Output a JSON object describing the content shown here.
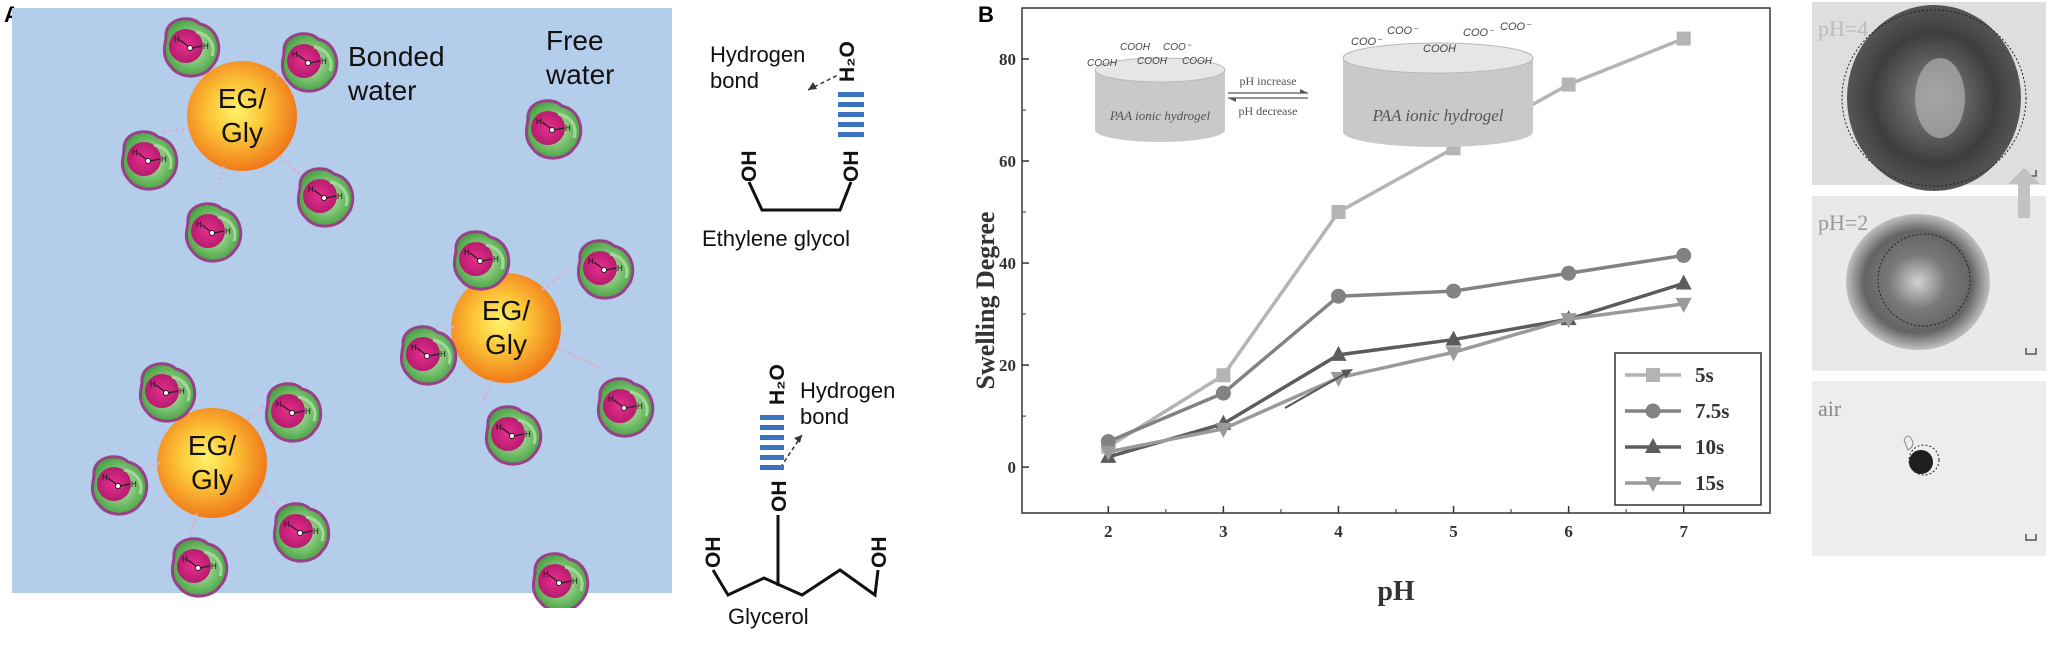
{
  "panel_a": {
    "letter": "A",
    "labels": {
      "bonded_water": [
        "Bonded",
        "water"
      ],
      "free_water": [
        "Free",
        "water"
      ],
      "eg_gly": [
        "EG/",
        "Gly"
      ],
      "hbond": [
        "Hydrogen",
        "bond"
      ],
      "h2o": "H₂O",
      "oh": "OH",
      "ethylene_glycol": "Ethylene glycol",
      "glycerol": "Glycerol"
    },
    "colors": {
      "background": "#b4cdea",
      "core_outer": "#f07a1a",
      "core_inner": "#fff06a",
      "water_magenta": "#d11d7d",
      "water_green": "#53b04b",
      "hbond_blue": "#3b73c0"
    }
  },
  "panel_b": {
    "letter": "B",
    "inset": {
      "small_label": "PAA ionic hydrogel",
      "large_label": "PAA ionic hydrogel",
      "increase": "pH increase",
      "decrease": "pH decrease",
      "small_groups": [
        "COOH",
        "COOH",
        "COOH",
        "COO⁻",
        "COOH"
      ],
      "large_groups": [
        "COO⁻",
        "COO⁻",
        "COOH",
        "COO⁻",
        "COO⁻"
      ]
    },
    "photos": [
      "pH=4",
      "pH=2",
      "air"
    ]
  },
  "chart_data": {
    "type": "line",
    "title": "",
    "xlabel": "pH",
    "ylabel": "Swelling Degree",
    "x": [
      2,
      3,
      4,
      5,
      6,
      7
    ],
    "xlim": [
      1.25,
      7.75
    ],
    "ylim": [
      -9,
      90
    ],
    "xticks": [
      2,
      3,
      4,
      5,
      6,
      7
    ],
    "yticks": [
      0,
      20,
      40,
      60,
      80
    ],
    "grid": false,
    "legend_position": "bottom-right",
    "series": [
      {
        "name": "5s",
        "marker": "square",
        "color": "#b4b4b4",
        "values": [
          4,
          18,
          50,
          62.5,
          75,
          84
        ]
      },
      {
        "name": "7.5s",
        "marker": "circle",
        "color": "#828282",
        "values": [
          5,
          14.5,
          33.5,
          34.5,
          38,
          41.5
        ]
      },
      {
        "name": "10s",
        "marker": "triangle-up",
        "color": "#5c5c5c",
        "values": [
          2,
          8.5,
          22,
          25,
          29,
          36
        ]
      },
      {
        "name": "15s",
        "marker": "triangle-down",
        "color": "#9a9a9a",
        "values": [
          3,
          7.5,
          17.5,
          22.5,
          29,
          32
        ]
      }
    ]
  }
}
